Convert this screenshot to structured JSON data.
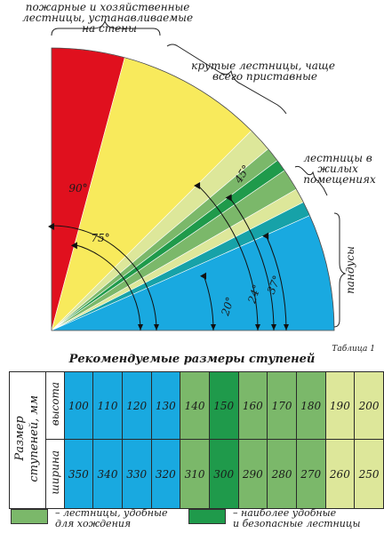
{
  "diagram": {
    "sectors": [
      {
        "name": "fire",
        "from_deg": 75,
        "to_deg": 90,
        "color": "#e0101e"
      },
      {
        "name": "steep",
        "from_deg": 45,
        "to_deg": 75,
        "color": "#f8ea5c"
      },
      {
        "name": "pale1",
        "from_deg": 40,
        "to_deg": 45,
        "color": "#dde79a"
      },
      {
        "name": "med1",
        "from_deg": 37,
        "to_deg": 40,
        "color": "#7bb86a"
      },
      {
        "name": "dark1",
        "from_deg": 34.5,
        "to_deg": 37,
        "color": "#1f9a4b"
      },
      {
        "name": "med2",
        "from_deg": 30,
        "to_deg": 34.5,
        "color": "#7bb86a"
      },
      {
        "name": "pale2",
        "from_deg": 27,
        "to_deg": 30,
        "color": "#dde79a"
      },
      {
        "name": "ramp-teal",
        "from_deg": 24,
        "to_deg": 27,
        "color": "#17a2a8"
      },
      {
        "name": "ramp-blue",
        "from_deg": 0,
        "to_deg": 24,
        "color": "#19a9e0"
      }
    ],
    "labels": {
      "fire": "пожарные и хозяйственные\nлестницы, устанавливаемые\nна стены",
      "steep": "крутые лестницы, чаще\nвсего приставные",
      "living": "лестницы в\nжилых\nпомещениях",
      "ramps": "пандусы"
    },
    "angles": [
      {
        "value": 90,
        "label": "90°"
      },
      {
        "value": 75,
        "label": "75°"
      },
      {
        "value": 45,
        "label": "45°"
      },
      {
        "value": 37,
        "label": "37°"
      },
      {
        "value": 24,
        "label": "24°"
      },
      {
        "value": 20,
        "label": "20°"
      }
    ]
  },
  "table": {
    "caption": "Таблица 1",
    "title": "Рекомендуемые размеры ступеней",
    "row_group_label": "Размер\nступеней, мм",
    "row_labels": [
      "высота",
      "ширина"
    ],
    "heights": [
      "100",
      "110",
      "120",
      "130",
      "140",
      "150",
      "160",
      "170",
      "180",
      "190",
      "200"
    ],
    "widths": [
      "350",
      "340",
      "330",
      "320",
      "310",
      "300",
      "290",
      "280",
      "270",
      "260",
      "250"
    ],
    "column_colors": [
      "#19a9e0",
      "#19a9e0",
      "#19a9e0",
      "#19a9e0",
      "#7bb86a",
      "#1f9a4b",
      "#7bb86a",
      "#7bb86a",
      "#7bb86a",
      "#dde79a",
      "#dde79a"
    ]
  },
  "legend": [
    {
      "label": "– лестницы, удобные\nдля хождения",
      "color": "#7bb86a"
    },
    {
      "label": "– наиболее удобные\nи безопасные лестницы",
      "color": "#1f9a4b"
    }
  ]
}
